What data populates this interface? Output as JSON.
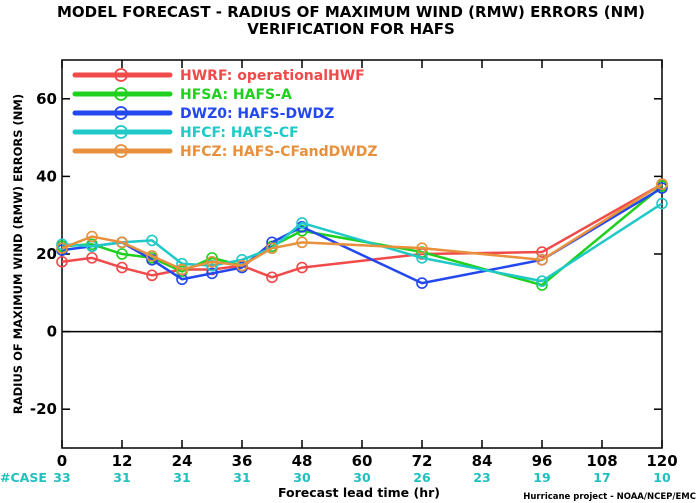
{
  "chart_data": {
    "type": "line",
    "title": "MODEL FORECAST - RADIUS OF MAXIMUM WIND (RMW) ERRORS (NM)",
    "subtitle": "VERIFICATION FOR HAFS",
    "xlabel": "Forecast lead time (hr)",
    "ylabel": "RADIUS OF MAXIMUM WIND (RMW) ERRORS (NM)",
    "credit": "Hurricane project - NOAA/NCEP/EMC",
    "xlim": [
      0,
      120
    ],
    "ylim": [
      -30,
      70
    ],
    "xticks": [
      "0",
      "12",
      "24",
      "36",
      "48",
      "60",
      "72",
      "84",
      "96",
      "108",
      "120"
    ],
    "yticks": [
      "-20",
      "0",
      "20",
      "40",
      "60"
    ],
    "ytick_values": [
      -20,
      0,
      20,
      40,
      60
    ],
    "xtick_values": [
      0,
      12,
      24,
      36,
      48,
      60,
      72,
      84,
      96,
      108,
      120
    ],
    "grid": false,
    "legend_placement": "top-left",
    "case_label": "#CASE",
    "case_counts": [
      "33",
      "31",
      "31",
      "31",
      "30",
      "30",
      "26",
      "23",
      "19",
      "17",
      "10"
    ],
    "case_color": "#20c0c0",
    "series": [
      {
        "name": "HWRF: operationalHWF",
        "color": "#f04a4a",
        "x": [
          0,
          6,
          12,
          18,
          24,
          30,
          36,
          42,
          48,
          72,
          96,
          120
        ],
        "y": [
          18,
          19,
          16.5,
          14.5,
          16,
          16,
          17,
          14,
          16.5,
          20,
          20.5,
          38
        ]
      },
      {
        "name": "HFSA: HAFS-A",
        "color": "#1fd01f",
        "x": [
          0,
          6,
          12,
          18,
          24,
          30,
          36,
          42,
          48,
          72,
          96,
          120
        ],
        "y": [
          22,
          22.5,
          20,
          19,
          15.5,
          19,
          17,
          22,
          26,
          20.5,
          12,
          37.5
        ]
      },
      {
        "name": "DWZ0: HAFS-DWDZ",
        "color": "#2448f0",
        "x": [
          0,
          6,
          12,
          18,
          24,
          30,
          36,
          42,
          48,
          72,
          96,
          120
        ],
        "y": [
          21,
          22,
          23,
          18.5,
          13.5,
          15,
          16.5,
          23,
          27,
          12.5,
          18.5,
          37
        ]
      },
      {
        "name": "HFCF: HAFS-CF",
        "color": "#20c8c8",
        "x": [
          0,
          6,
          12,
          18,
          24,
          30,
          36,
          42,
          48,
          72,
          96,
          120
        ],
        "y": [
          22.5,
          22,
          23,
          23.5,
          17.5,
          17,
          18.5,
          21.5,
          28,
          19,
          13,
          33
        ]
      },
      {
        "name": "HFCZ: HAFS-CFandDWDZ",
        "color": "#e8903c",
        "x": [
          0,
          6,
          12,
          18,
          24,
          30,
          36,
          42,
          48,
          72,
          96,
          120
        ],
        "y": [
          21.5,
          24.5,
          23,
          19.5,
          16,
          18,
          17,
          21.5,
          23,
          21.5,
          18.5,
          38
        ]
      }
    ]
  }
}
